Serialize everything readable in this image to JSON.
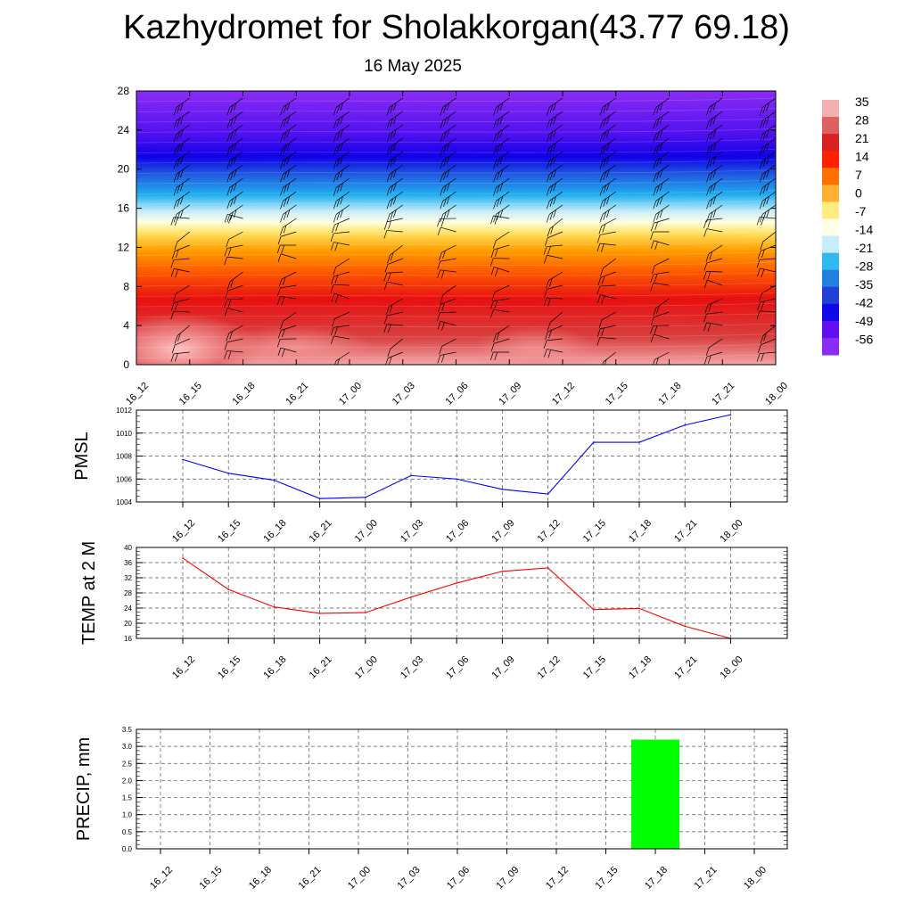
{
  "title": "Kazhydromet for Sholakkorgan(43.77 69.18)",
  "subtitle": "16 May 2025",
  "colorbar": {
    "labels": [
      "35",
      "28",
      "21",
      "14",
      "7",
      "0",
      "-7",
      "-14",
      "-21",
      "-28",
      "-35",
      "-42",
      "-49",
      "-56"
    ]
  },
  "chart_data": [
    {
      "type": "heatmap",
      "name": "",
      "x_categories": [
        "16_12",
        "16_15",
        "16_18",
        "16_21",
        "17_00",
        "17_03",
        "17_06",
        "17_09",
        "17_12",
        "17_15",
        "17_18",
        "17_21",
        "18_00"
      ],
      "y_ticks": [
        0,
        4,
        8,
        12,
        16,
        20,
        24,
        28
      ],
      "ylim": [
        0,
        28
      ],
      "color_levels": [
        35,
        28,
        21,
        14,
        7,
        0,
        -7,
        -14,
        -21,
        -28,
        -35,
        -42,
        -49,
        -56
      ],
      "overlay": "wind barbs"
    },
    {
      "type": "line",
      "ylabel": "PMSL",
      "categories": [
        "16_12",
        "16_15",
        "16_18",
        "16_21",
        "17_00",
        "17_03",
        "17_06",
        "17_09",
        "17_12",
        "17_15",
        "17_18",
        "17_21",
        "18_00"
      ],
      "values": [
        1007.7,
        1006.5,
        1005.9,
        1004.3,
        1004.4,
        1006.3,
        1006.0,
        1005.1,
        1004.7,
        1009.2,
        1009.2,
        1010.7,
        1011.6
      ],
      "ylim": [
        1004,
        1012
      ],
      "yticks": [
        1004,
        1006,
        1008,
        1010,
        1012
      ],
      "color": "#0000ff",
      "grid": true
    },
    {
      "type": "line",
      "ylabel": "TEMP at 2 M",
      "categories": [
        "16_12",
        "16_15",
        "16_18",
        "16_21",
        "17_00",
        "17_03",
        "17_06",
        "17_09",
        "17_12",
        "17_15",
        "17_18",
        "17_21",
        "18_00"
      ],
      "values": [
        37.2,
        28.9,
        24.3,
        22.6,
        22.8,
        26.9,
        30.6,
        33.7,
        34.6,
        23.6,
        23.9,
        19.2,
        16.0
      ],
      "ylim": [
        16,
        40
      ],
      "yticks": [
        16,
        20,
        24,
        28,
        32,
        36,
        40
      ],
      "color": "#ff0000",
      "grid": true
    },
    {
      "type": "bar",
      "ylabel": "PRECIP, mm",
      "categories": [
        "16_12",
        "16_15",
        "16_18",
        "16_21",
        "17_00",
        "17_03",
        "17_06",
        "17_09",
        "17_12",
        "17_15",
        "17_18",
        "17_21",
        "18_00"
      ],
      "values": [
        0,
        0,
        0,
        0,
        0,
        0,
        0,
        0,
        0,
        0,
        3.2,
        0,
        0
      ],
      "ylim": [
        0,
        3.5
      ],
      "yticks": [
        "0.0",
        "0.5",
        "1.0",
        "1.5",
        "2.0",
        "2.5",
        "3.0",
        "3.5"
      ],
      "color": "#00ff00",
      "grid": true
    }
  ]
}
